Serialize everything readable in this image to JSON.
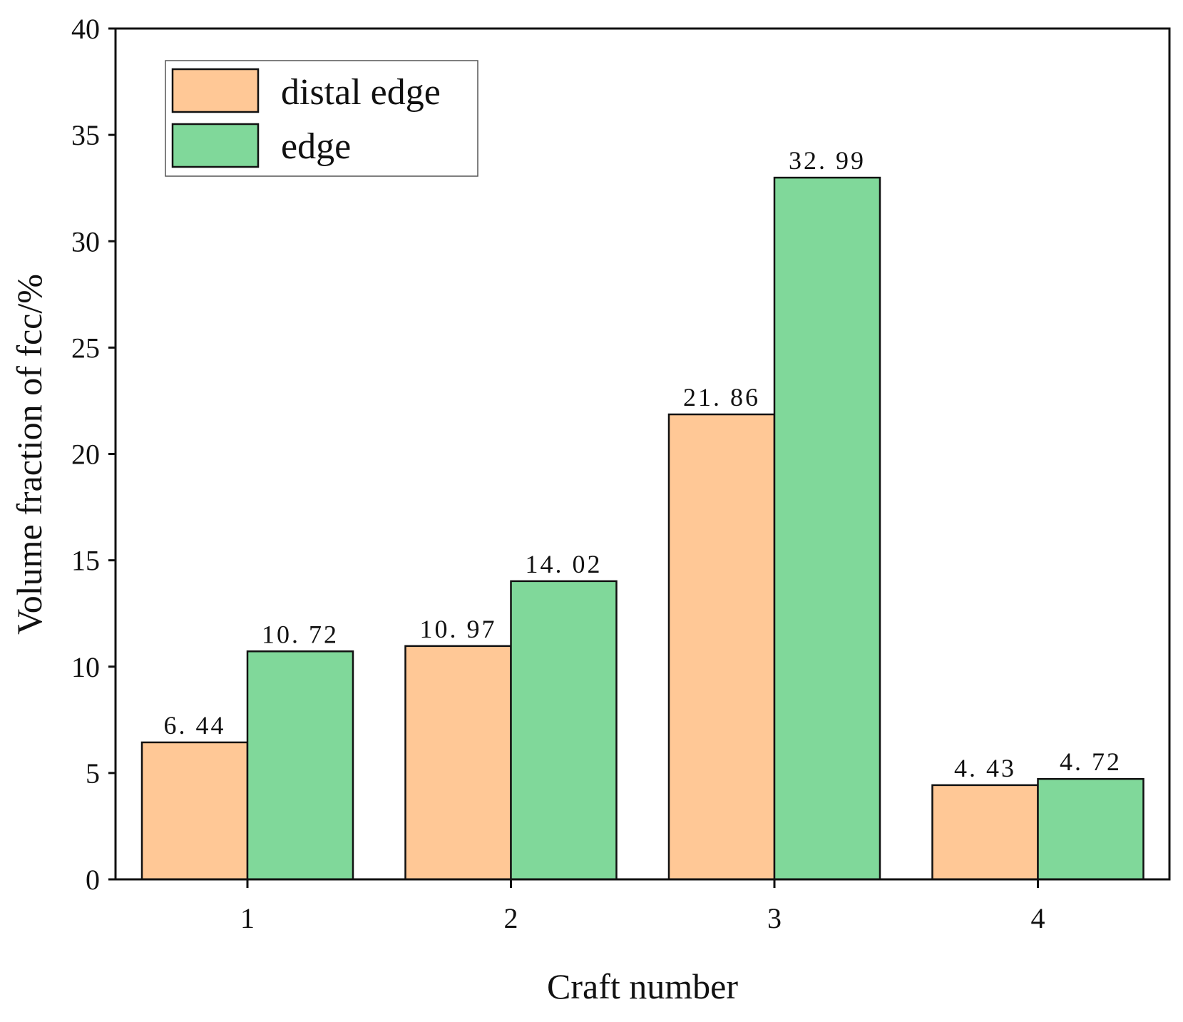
{
  "chart_data": {
    "type": "bar",
    "title": "",
    "xlabel": "Craft number",
    "ylabel": "Volume fraction of fcc/%",
    "categories": [
      "1",
      "2",
      "3",
      "4"
    ],
    "series": [
      {
        "name": "distal edge",
        "color": "#FFC896",
        "values": [
          6.44,
          10.97,
          21.86,
          4.43
        ],
        "labels": [
          "6. 44",
          "10. 97",
          "21. 86",
          "4. 43"
        ]
      },
      {
        "name": "edge",
        "color": "#80D89A",
        "values": [
          10.72,
          14.02,
          32.99,
          4.72
        ],
        "labels": [
          "10. 72",
          "14. 02",
          "32. 99",
          "4. 72"
        ]
      }
    ],
    "ylim": [
      0,
      40
    ],
    "yticks": [
      0,
      5,
      10,
      15,
      20,
      25,
      30,
      35,
      40
    ],
    "ytick_labels": [
      "0",
      "5",
      "10",
      "15",
      "20",
      "25",
      "30",
      "35",
      "40"
    ],
    "grid": false,
    "legend_position": "top-left"
  }
}
